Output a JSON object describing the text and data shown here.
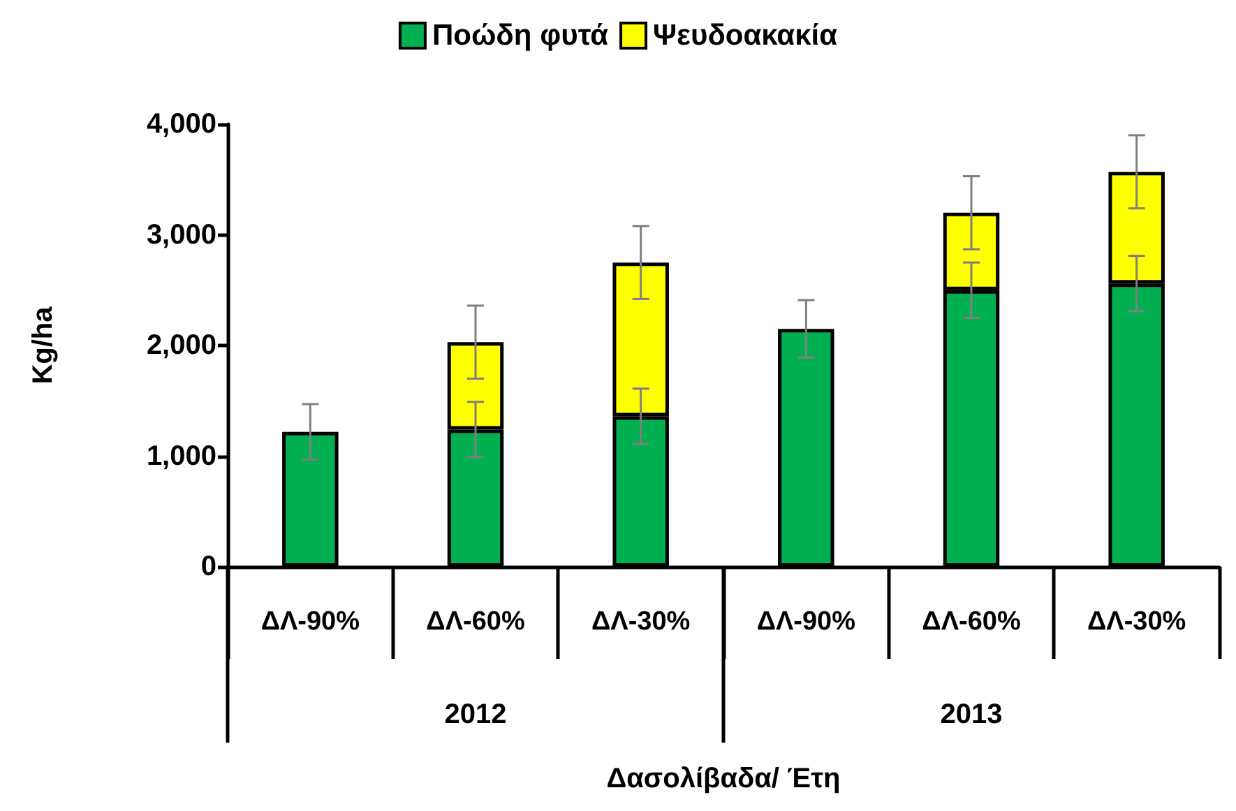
{
  "chart_data": {
    "type": "bar",
    "stacked": true,
    "xlabel": "Δασολίβαδα/ Έτη",
    "ylabel": "Kg/ha",
    "categories": [
      "ΔΛ-90%",
      "ΔΛ-60%",
      "ΔΛ-30%",
      "ΔΛ-90%",
      "ΔΛ-60%",
      "ΔΛ-30%"
    ],
    "annotations": [
      "2012",
      "2013"
    ],
    "series": [
      {
        "name": "Ποώδη φυτά",
        "color": "#00b050",
        "values": [
          1220,
          1240,
          1360,
          2150,
          2500,
          2560
        ],
        "errors": [
          250,
          250,
          250,
          260,
          250,
          250
        ]
      },
      {
        "name": "Ψευδοακακία",
        "color": "#ffff00",
        "values": [
          null,
          790,
          1390,
          null,
          700,
          1010
        ],
        "errors": [
          null,
          330,
          330,
          null,
          330,
          330
        ]
      }
    ],
    "ylim": [
      0,
      4000
    ],
    "yticks": [
      {
        "value": 0,
        "label": "0"
      },
      {
        "value": 1000,
        "label": "1,000"
      },
      {
        "value": 2000,
        "label": "2,000"
      },
      {
        "value": 3000,
        "label": "3,000"
      },
      {
        "value": 4000,
        "label": "4,000"
      }
    ],
    "grid": false,
    "legend": "top"
  }
}
